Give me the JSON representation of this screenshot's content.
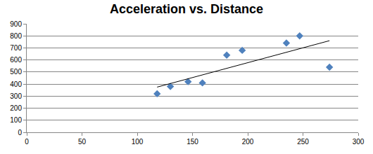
{
  "chart_data": {
    "type": "scatter",
    "title": "Acceleration vs. Distance",
    "xlim": [
      0,
      300
    ],
    "xticks": [
      0,
      50,
      100,
      150,
      200,
      250,
      300
    ],
    "ylim": [
      0,
      900
    ],
    "yticks": [
      0,
      100,
      200,
      300,
      400,
      500,
      600,
      700,
      800,
      900
    ],
    "grid": true,
    "series": [
      {
        "type": "scatter",
        "color": "#4f81bd",
        "marker": "diamond",
        "x": [
          118,
          130,
          146,
          159,
          181,
          195,
          235,
          247,
          274
        ],
        "values": [
          320,
          380,
          420,
          410,
          640,
          680,
          740,
          800,
          540
        ]
      },
      {
        "type": "line",
        "color": "#000000",
        "line_style": "solid",
        "x": [
          118,
          274
        ],
        "values": [
          375,
          760
        ]
      }
    ]
  }
}
